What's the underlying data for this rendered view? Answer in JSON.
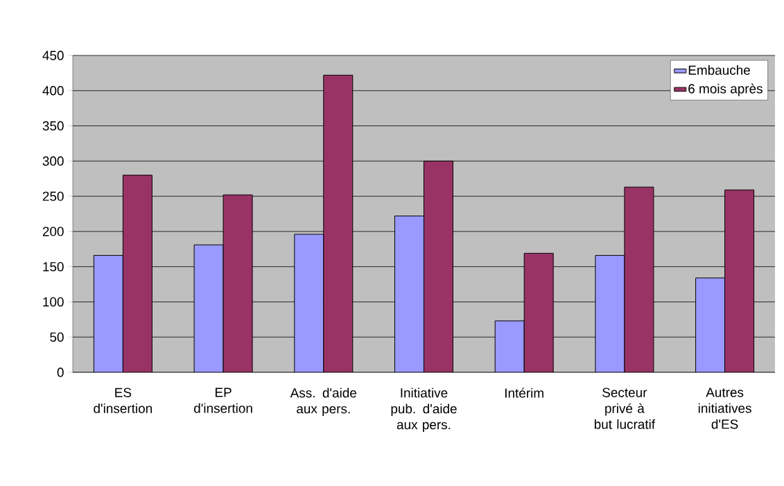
{
  "chart_data": {
    "type": "bar",
    "categories": [
      "ES d'insertion",
      "EP d'insertion",
      "Ass. d'aide aux pers.",
      "Initiative pub. d'aide aux pers.",
      "Intérim",
      "Secteur privé à but lucratif",
      "Autres initiatives d'ES"
    ],
    "series": [
      {
        "name": "Embauche",
        "color": "#9999ff",
        "values": [
          166,
          181,
          196,
          222,
          73,
          166,
          134
        ]
      },
      {
        "name": "6 mois après",
        "color": "#993366",
        "values": [
          280,
          252,
          422,
          300,
          169,
          263,
          259
        ]
      }
    ],
    "ylim": [
      0,
      450
    ],
    "yticks": [
      0,
      50,
      100,
      150,
      200,
      250,
      300,
      350,
      400,
      450
    ],
    "grid": "y",
    "legend": "top right"
  }
}
